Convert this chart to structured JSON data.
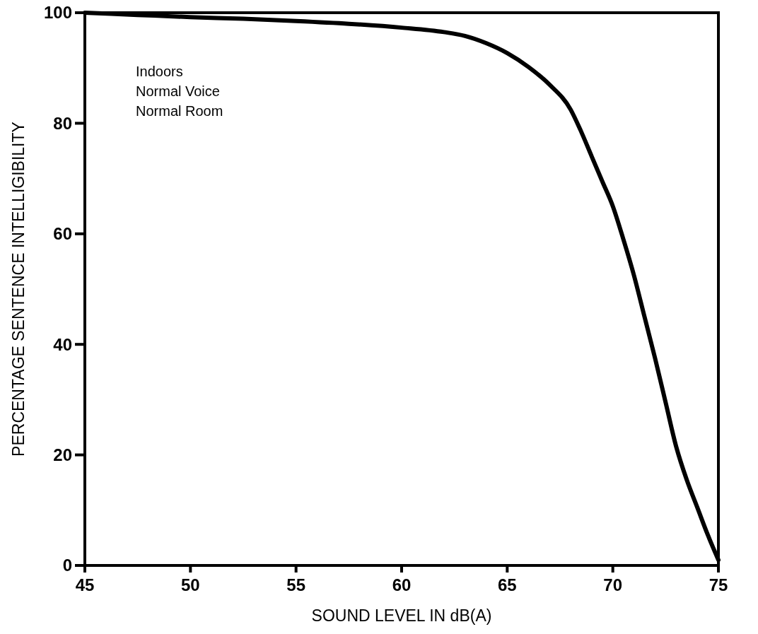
{
  "chart_data": {
    "type": "line",
    "xlabel": "SOUND LEVEL IN dB(A)",
    "ylabel": "PERCENTAGE SENTENCE INTELLIGIBILITY",
    "annotations": [
      "Indoors",
      "Normal Voice",
      "Normal Room"
    ],
    "x": [
      45,
      47.5,
      50,
      52.5,
      55,
      57.5,
      60,
      62,
      63,
      64,
      65,
      66,
      67,
      68,
      68.5,
      69,
      69.5,
      70,
      70.5,
      71,
      71.5,
      72,
      72.5,
      73,
      73.5,
      74,
      74.5,
      75
    ],
    "series": [
      {
        "color": "#000000",
        "values": [
          100,
          99.6,
          99.2,
          98.9,
          98.5,
          98,
          97.3,
          96.5,
          95.8,
          94.5,
          92.7,
          90.2,
          87,
          82.5,
          78.5,
          74,
          69.5,
          65,
          59,
          52.5,
          45,
          37.5,
          29.5,
          21.5,
          15.5,
          10.5,
          5.5,
          1
        ]
      }
    ],
    "xlim": [
      45,
      75
    ],
    "ylim": [
      0,
      100
    ],
    "xticks": [
      45,
      50,
      55,
      60,
      65,
      70,
      75
    ],
    "yticks": [
      0,
      20,
      40,
      60,
      80,
      100
    ],
    "grid": false,
    "marker": "none",
    "line_style": "solid"
  }
}
